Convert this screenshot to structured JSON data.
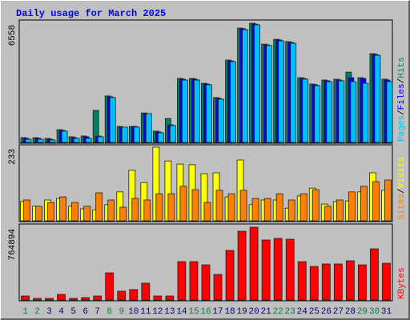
{
  "chart_data": [
    {
      "type": "bar",
      "title": "Daily usage for March 2025",
      "categories": [
        "1",
        "2",
        "3",
        "4",
        "5",
        "6",
        "7",
        "8",
        "9",
        "10",
        "11",
        "12",
        "13",
        "14",
        "15",
        "16",
        "17",
        "18",
        "19",
        "20",
        "21",
        "22",
        "23",
        "24",
        "25",
        "26",
        "27",
        "28",
        "29",
        "30",
        "31"
      ],
      "category_colors": [
        "#008040",
        "#008040",
        "#000080",
        "#000080",
        "#000080",
        "#000080",
        "#000080",
        "#008040",
        "#008040",
        "#000080",
        "#000080",
        "#000080",
        "#000080",
        "#000080",
        "#008040",
        "#008040",
        "#000080",
        "#000080",
        "#000080",
        "#000080",
        "#000080",
        "#008040",
        "#008040",
        "#000080",
        "#000080",
        "#000080",
        "#000080",
        "#000080",
        "#008040",
        "#008040",
        "#000080"
      ],
      "legend_separator": "/",
      "series": [
        {
          "name": "Hits",
          "color": "#008060",
          "values": [
            220,
            220,
            180,
            660,
            270,
            310,
            1730,
            2530,
            840,
            840,
            1590,
            580,
            1280,
            3500,
            3500,
            3230,
            2440,
            4520,
            6290,
            6558,
            5400,
            5670,
            5540,
            3540,
            3190,
            3410,
            3460,
            3850,
            3540,
            4870,
            3460
          ]
        },
        {
          "name": "Files",
          "color": "#0000ff",
          "values": [
            180,
            180,
            130,
            620,
            220,
            270,
            310,
            2480,
            800,
            840,
            1550,
            530,
            930,
            3460,
            3460,
            3190,
            2390,
            4470,
            6250,
            6510,
            5360,
            5630,
            5490,
            3500,
            3150,
            3370,
            3410,
            3540,
            3500,
            4830,
            3410
          ]
        },
        {
          "name": "Pages",
          "color": "#00c0ff",
          "values": [
            130,
            130,
            90,
            580,
            180,
            180,
            270,
            2440,
            800,
            800,
            1550,
            490,
            890,
            3410,
            3410,
            3150,
            2350,
            4430,
            6200,
            6470,
            5320,
            5580,
            5450,
            3460,
            3100,
            3320,
            3370,
            3320,
            3230,
            4780,
            3320
          ]
        }
      ],
      "ylim": [
        0,
        6558
      ],
      "yticks": [
        6558
      ]
    },
    {
      "type": "bar",
      "legend_separator": "/",
      "series": [
        {
          "name": "Visits",
          "color": "#ffff00",
          "values": [
            59,
            44,
            64,
            69,
            44,
            36,
            33,
            49,
            90,
            159,
            120,
            233,
            189,
            179,
            177,
            148,
            151,
            74,
            192,
            49,
            64,
            64,
            38,
            77,
            102,
            51,
            59,
            61,
            90,
            151,
            95
          ]
        },
        {
          "name": "Sites",
          "color": "#ff8000",
          "values": [
            64,
            44,
            56,
            74,
            56,
            44,
            87,
            64,
            41,
            69,
            64,
            84,
            84,
            108,
            97,
            56,
            95,
            84,
            95,
            69,
            69,
            84,
            64,
            84,
            97,
            44,
            64,
            90,
            108,
            123,
            128
          ]
        }
      ],
      "ylim": [
        0,
        233
      ],
      "yticks": [
        233
      ]
    },
    {
      "type": "bar",
      "series": [
        {
          "name": "KBytes",
          "color": "#ff0000",
          "values": [
            34000,
            8500,
            8500,
            51000,
            8500,
            17000,
            34000,
            280000,
            85000,
            102000,
            170000,
            34000,
            34000,
            399000,
            399000,
            365000,
            263000,
            518000,
            722000,
            764894,
            629000,
            646000,
            637000,
            399000,
            348000,
            374000,
            374000,
            408000,
            365000,
            535000,
            382000
          ]
        }
      ],
      "ylim": [
        0,
        764894
      ],
      "yticks": [
        764894
      ]
    }
  ]
}
